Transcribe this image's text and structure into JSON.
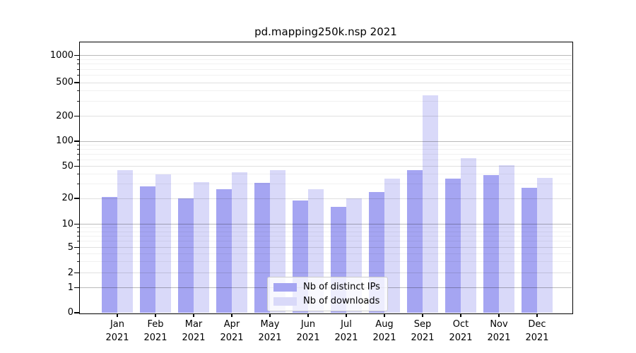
{
  "chart_data": {
    "type": "bar",
    "title": "pd.mapping250k.nsp 2021",
    "categories": [
      "Jan",
      "Feb",
      "Mar",
      "Apr",
      "May",
      "Jun",
      "Jul",
      "Aug",
      "Sep",
      "Oct",
      "Nov",
      "Dec"
    ],
    "x_year": "2021",
    "series": [
      {
        "name": "Nb of distinct IPs",
        "color": "#a5a5f2",
        "values": [
          21,
          28,
          20,
          26,
          31,
          19,
          16,
          24,
          45,
          35,
          39,
          27
        ]
      },
      {
        "name": "Nb of downloads",
        "color": "#d9d9f9",
        "values": [
          45,
          40,
          32,
          42,
          45,
          26,
          20,
          35,
          355,
          62,
          51,
          36
        ]
      }
    ],
    "y_ticks": [
      0,
      1,
      2,
      5,
      10,
      20,
      50,
      100,
      200,
      500,
      1000
    ],
    "y_scale": "symlog",
    "ylim": [
      0,
      1400
    ],
    "grid": true,
    "legend_position": "lower center"
  }
}
